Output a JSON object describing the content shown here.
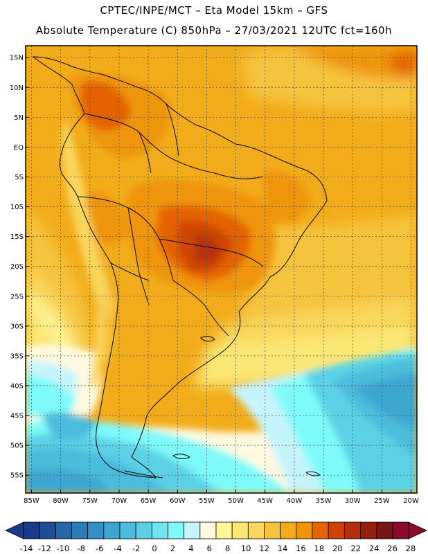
{
  "header": {
    "line1": "CPTEC/INPE/MCT –  Eta Model 15km – GFS",
    "line2": "Absolute Temperature (C) 850hPa – 27/03/2021 12UTC fct=160h"
  },
  "map": {
    "lon_range": [
      -86,
      -19
    ],
    "lat_range": [
      -58,
      17
    ],
    "lat_ticks": [
      "15N",
      "10N",
      "5N",
      "EQ",
      "5S",
      "10S",
      "15S",
      "20S",
      "25S",
      "30S",
      "35S",
      "40S",
      "45S",
      "50S",
      "55S"
    ],
    "lat_values": [
      15,
      10,
      5,
      0,
      -5,
      -10,
      -15,
      -20,
      -25,
      -30,
      -35,
      -40,
      -45,
      -50,
      -55
    ],
    "lon_ticks": [
      "85W",
      "80W",
      "75W",
      "70W",
      "65W",
      "60W",
      "55W",
      "50W",
      "45W",
      "40W",
      "35W",
      "30W",
      "25W",
      "20W"
    ],
    "lon_values": [
      -85,
      -80,
      -75,
      -70,
      -65,
      -60,
      -55,
      -50,
      -45,
      -40,
      -35,
      -30,
      -25,
      -20
    ]
  },
  "colorbar": {
    "labels": [
      "-14",
      "-12",
      "-10",
      "-8",
      "-6",
      "-4",
      "-2",
      "0",
      "2",
      "4",
      "6",
      "8",
      "10",
      "12",
      "14",
      "16",
      "18",
      "20",
      "22",
      "24",
      "26",
      "28"
    ],
    "colors": [
      "#1c3a8c",
      "#1f4e99",
      "#2466a8",
      "#2b7db8",
      "#3390c4",
      "#3ea6d0",
      "#4cbcdc",
      "#5cd1e6",
      "#6ee6ee",
      "#7ffafa",
      "#c6f4fb",
      "#fff9e0",
      "#fdf79a",
      "#fbe775",
      "#f9d65c",
      "#f6c33e",
      "#f2ac1b",
      "#ee9408",
      "#e46406",
      "#cf4406",
      "#b4300a",
      "#952010",
      "#781616",
      "#8a0a2a"
    ]
  }
}
